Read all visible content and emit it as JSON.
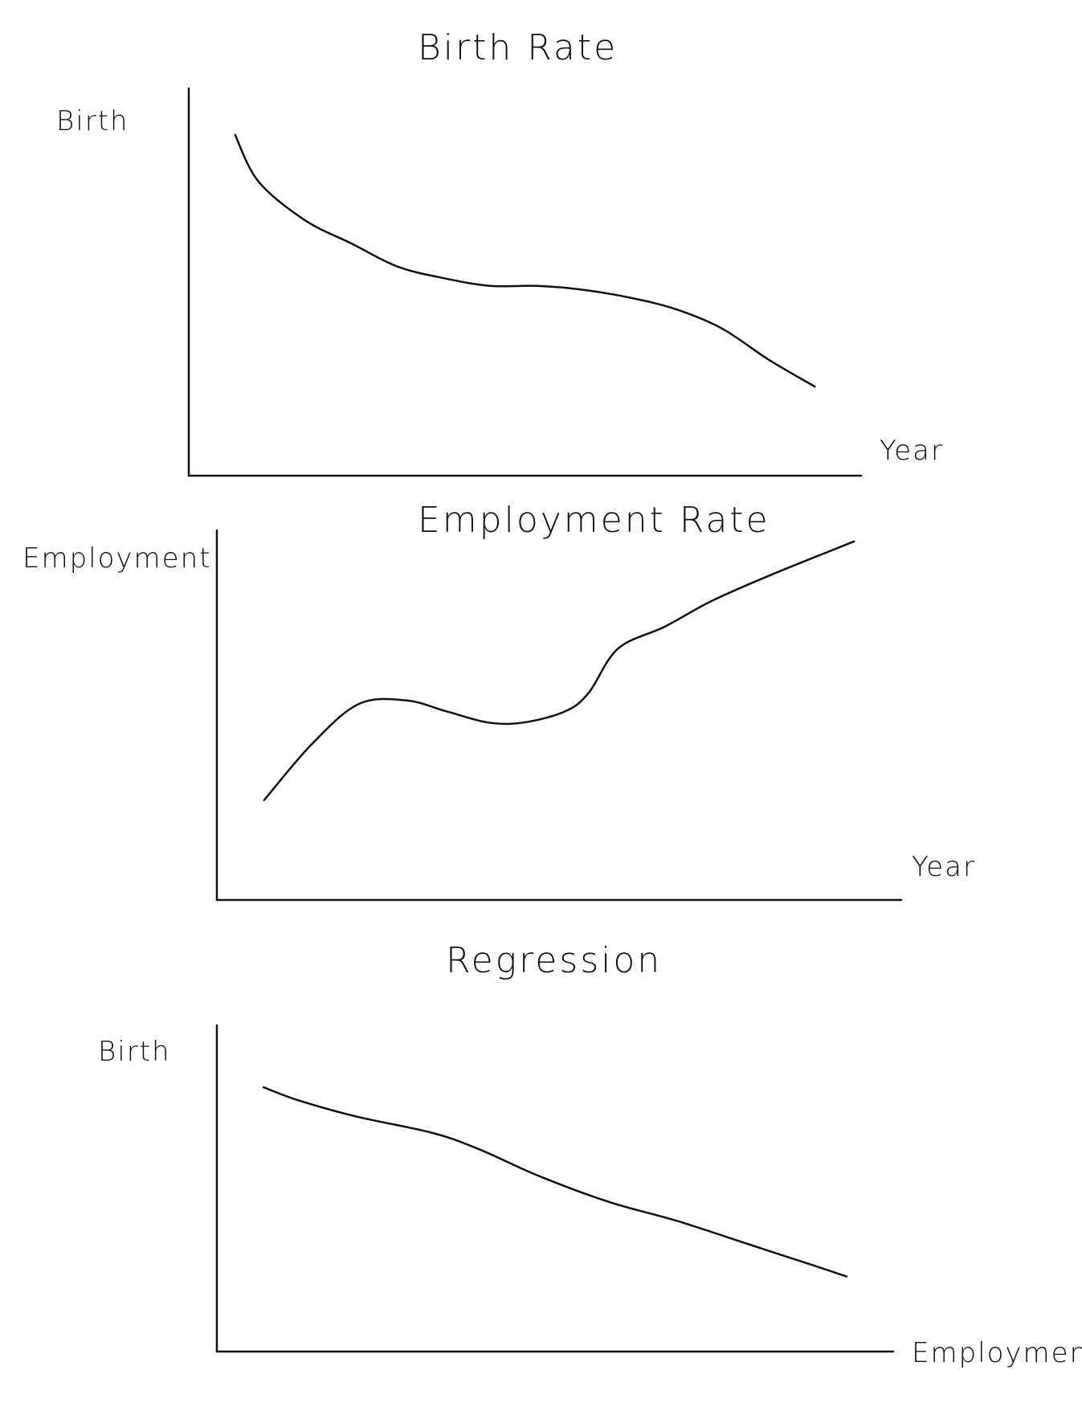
{
  "chart_data": [
    {
      "type": "line",
      "title": "Birth Rate",
      "xlabel": "Year",
      "ylabel": "Birth",
      "grid": false,
      "x": [
        0,
        4,
        12,
        20,
        28,
        36,
        44,
        52,
        60,
        68,
        76,
        84,
        92,
        100
      ],
      "y": [
        88,
        76,
        66,
        60,
        54,
        51,
        49,
        49,
        48,
        46,
        43,
        38,
        30,
        23
      ],
      "xlim": [
        -8,
        108
      ],
      "ylim": [
        0,
        100
      ]
    },
    {
      "type": "line",
      "title": "Employment Rate",
      "xlabel": "Year",
      "ylabel": "Employment",
      "grid": false,
      "x": [
        0,
        8,
        16,
        24,
        31,
        38,
        44,
        51,
        55,
        60,
        68,
        76,
        86,
        100
      ],
      "y": [
        27,
        42,
        53,
        54,
        51,
        48,
        48,
        51,
        56,
        68,
        74,
        81,
        88,
        97
      ],
      "xlim": [
        -8,
        108
      ],
      "ylim": [
        0,
        100
      ]
    },
    {
      "type": "line",
      "title": "Regression",
      "xlabel": "Employment",
      "ylabel": "Birth",
      "grid": false,
      "x": [
        0,
        6,
        16,
        29,
        37,
        47,
        59,
        71,
        83,
        95,
        100
      ],
      "y": [
        81,
        77,
        72,
        67,
        62,
        54,
        46,
        40,
        33,
        26,
        23
      ],
      "xlim": [
        -8,
        108
      ],
      "ylim": [
        0,
        100
      ]
    }
  ]
}
